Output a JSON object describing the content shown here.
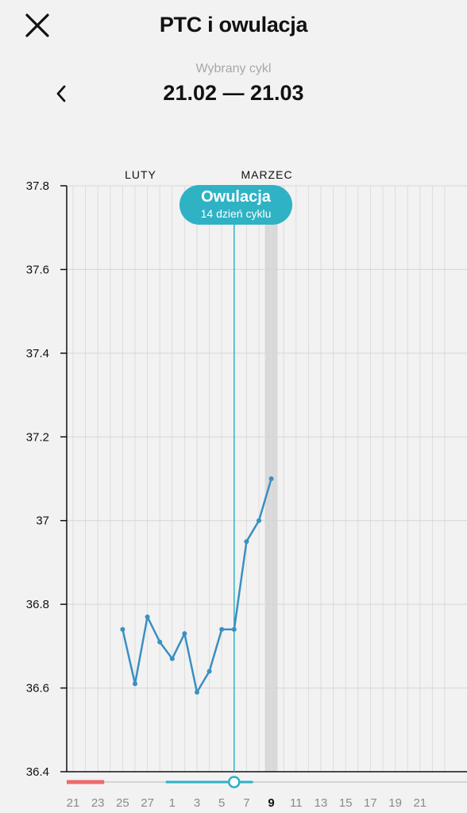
{
  "header": {
    "title": "PTC i owulacja",
    "close_icon": "close-icon"
  },
  "cycle": {
    "caption": "Wybrany cykl",
    "range": "21.02 — 21.03",
    "back_icon": "chevron-left-icon"
  },
  "ovulation": {
    "label": "Owulacja",
    "sublabel": "14 dzień cyklu"
  },
  "colors": {
    "line": "#3a8fc2",
    "accent": "#2fb2c4",
    "period": "#ee6a6a",
    "today_highlight": "#d9d9d9"
  },
  "chart_data": {
    "type": "line",
    "y_ticks": [
      "37.8",
      "37.6",
      "37.4",
      "37.2",
      "37",
      "36.8",
      "36.6",
      "36.4"
    ],
    "ylim": [
      36.4,
      37.8
    ],
    "months": [
      "LUTY",
      "MARZEC"
    ],
    "x_dates": [
      "21",
      "22",
      "23",
      "24",
      "25",
      "26",
      "27",
      "28",
      "1",
      "2",
      "3",
      "4",
      "5",
      "6",
      "7",
      "8",
      "9",
      "10",
      "11",
      "12",
      "13",
      "14",
      "15",
      "16",
      "17",
      "18",
      "19",
      "20",
      "21",
      "22",
      "23"
    ],
    "x_tick_labels": [
      "21",
      "23",
      "25",
      "27",
      "1",
      "3",
      "5",
      "7",
      "9",
      "11",
      "13",
      "15",
      "17",
      "19",
      "21"
    ],
    "current_day": "9",
    "ovulation_day": "6",
    "period_days": [
      "21",
      "22",
      "23"
    ],
    "series": [
      {
        "x": [
          "25",
          "26",
          "27",
          "28",
          "1",
          "2",
          "3",
          "4",
          "5",
          "6",
          "7",
          "8",
          "9"
        ],
        "values": [
          36.74,
          36.61,
          36.77,
          36.71,
          36.67,
          36.73,
          36.59,
          36.64,
          36.74,
          36.74,
          36.95,
          37.0,
          37.1
        ]
      }
    ]
  }
}
